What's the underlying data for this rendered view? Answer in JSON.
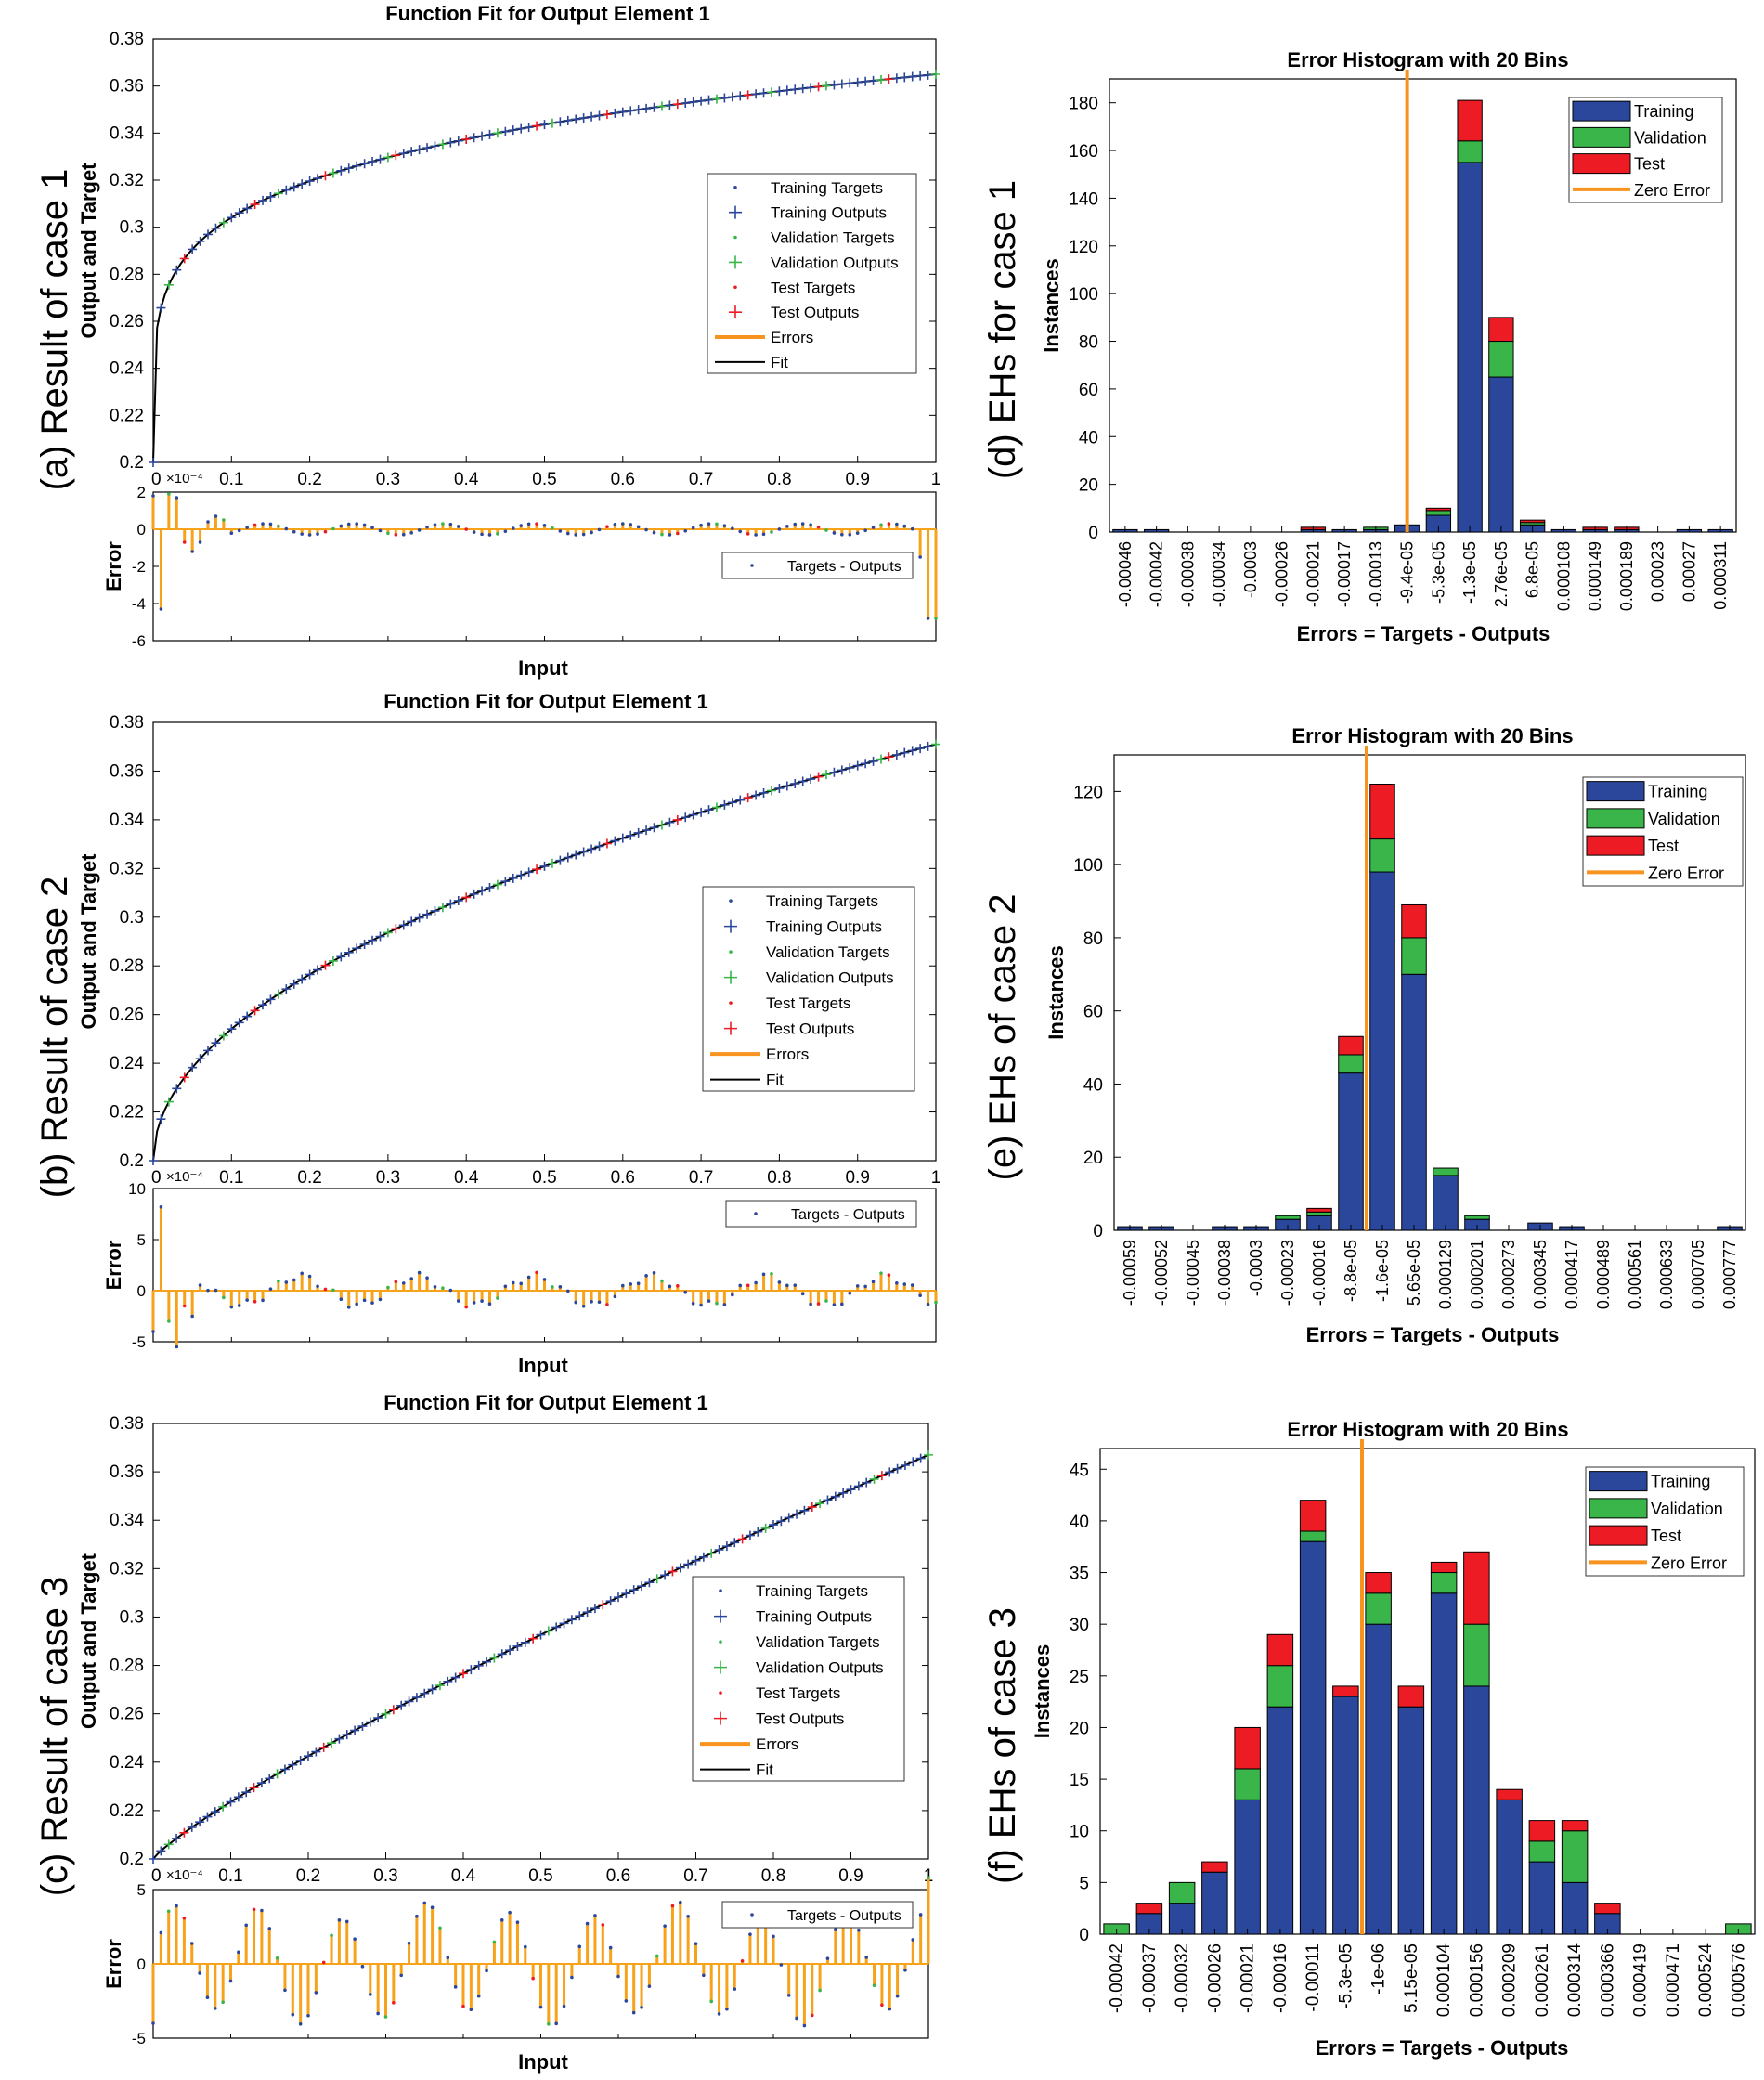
{
  "panel_labels": [
    "(a) Result of case 1",
    "(b) Result of case 2",
    "(c) Result of case 3",
    "(d) EHs for case 1",
    "(e) EHs of case 2",
    "(f) EHs of case 3"
  ],
  "fit_text": {
    "title": "Function Fit for Output Element 1",
    "ylabel": "Output and Target",
    "error_ylabel": "Error",
    "xlabel": "Input",
    "exponent": "×10⁻⁴",
    "legend": [
      "Training Targets",
      "Training Outputs",
      "Validation Targets",
      "Validation Outputs",
      "Test Targets",
      "Test Outputs",
      "Errors",
      "Fit"
    ],
    "error_legend": "Targets - Outputs"
  },
  "hist_text": {
    "title": "Error Histogram with 20 Bins",
    "ylabel": "Instances",
    "xlabel": "Errors = Targets - Outputs",
    "legend": [
      "Training",
      "Validation",
      "Test",
      "Zero Error"
    ]
  },
  "colors": {
    "training": "#2b479c",
    "validation": "#39b54a",
    "test": "#ed1c24",
    "zero": "#f7931e",
    "fit": "#000000",
    "error_bar": "#f7a21b"
  },
  "chart_data": [
    {
      "type": "line",
      "panel": "a",
      "title": "Function Fit for Output Element 1",
      "xlabel": "Input",
      "ylabel": "Output and Target",
      "xlim": [
        0,
        1
      ],
      "ylim": [
        0.2,
        0.38
      ],
      "model": "power",
      "exponent": 0.2,
      "x": [
        0,
        0.01,
        0.02,
        0.04,
        0.06,
        0.1,
        0.15,
        0.2,
        0.3,
        0.4,
        0.5,
        0.6,
        0.7,
        0.8,
        0.9,
        1.0
      ],
      "y": [
        0.2,
        0.248,
        0.26,
        0.268,
        0.276,
        0.292,
        0.303,
        0.311,
        0.323,
        0.332,
        0.339,
        0.345,
        0.351,
        0.356,
        0.361,
        0.365
      ],
      "error_panel": {
        "ylabel": "Error",
        "xlabel": "Input",
        "ylim": [
          -6,
          2
        ],
        "yticks": [
          -6,
          -4,
          -2,
          0,
          2
        ],
        "scale": "×10⁻⁴",
        "shape": "case1"
      }
    },
    {
      "type": "line",
      "panel": "b",
      "title": "Function Fit for Output Element 1",
      "xlabel": "Input",
      "ylabel": "Output and Target",
      "xlim": [
        0,
        1
      ],
      "ylim": [
        0.2,
        0.38
      ],
      "model": "power",
      "exponent": 0.5,
      "x": [
        0,
        0.02,
        0.05,
        0.1,
        0.2,
        0.3,
        0.4,
        0.5,
        0.6,
        0.7,
        0.8,
        0.9,
        1.0
      ],
      "y": [
        0.2,
        0.212,
        0.225,
        0.254,
        0.272,
        0.29,
        0.305,
        0.321,
        0.333,
        0.344,
        0.352,
        0.362,
        0.371
      ],
      "error_panel": {
        "ylabel": "Error",
        "xlabel": "Input",
        "ylim": [
          -5,
          10
        ],
        "yticks": [
          -5,
          0,
          5,
          10
        ],
        "scale": "×10⁻⁴",
        "shape": "case2"
      }
    },
    {
      "type": "line",
      "panel": "c",
      "title": "Function Fit for Output Element 1",
      "xlabel": "Input",
      "ylabel": "Output and Target",
      "xlim": [
        0,
        1
      ],
      "ylim": [
        0.2,
        0.38
      ],
      "model": "power",
      "exponent": 0.85,
      "x": [
        0,
        0.1,
        0.2,
        0.3,
        0.4,
        0.5,
        0.6,
        0.7,
        0.8,
        0.9,
        1.0
      ],
      "y": [
        0.2,
        0.225,
        0.243,
        0.262,
        0.28,
        0.297,
        0.313,
        0.328,
        0.343,
        0.355,
        0.367
      ],
      "error_panel": {
        "ylabel": "Error",
        "xlabel": "Input",
        "ylim": [
          -5,
          5
        ],
        "yticks": [
          -5,
          0,
          5
        ],
        "scale": "×10⁻⁴",
        "shape": "case3"
      }
    },
    {
      "type": "bar",
      "stacked": true,
      "panel": "d",
      "title": "Error Histogram with 20 Bins",
      "xlabel": "Errors = Targets - Outputs",
      "ylabel": "Instances",
      "ylim": [
        0,
        190
      ],
      "yticks": [
        0,
        20,
        40,
        60,
        80,
        100,
        120,
        140,
        160,
        180
      ],
      "zero_error_bin": 9.5,
      "categories": [
        "-0.00046",
        "-0.00042",
        "-0.00038",
        "-0.00034",
        "-0.0003",
        "-0.00026",
        "-0.00021",
        "-0.00017",
        "-0.00013",
        "-9.4e-05",
        "-5.3e-05",
        "-1.3e-05",
        "2.76e-05",
        "6.8e-05",
        "0.000108",
        "0.000149",
        "0.000189",
        "0.00023",
        "0.00027",
        "0.000311"
      ],
      "series": [
        {
          "name": "Training",
          "values": [
            1,
            1,
            0,
            0,
            0,
            0,
            1,
            1,
            1,
            3,
            7,
            155,
            65,
            3,
            1,
            1,
            1,
            0,
            1,
            1
          ]
        },
        {
          "name": "Validation",
          "values": [
            0,
            0,
            0,
            0,
            0,
            0,
            0,
            0,
            1,
            0,
            2,
            9,
            15,
            1,
            0,
            0,
            0,
            0,
            0,
            0
          ]
        },
        {
          "name": "Test",
          "values": [
            0,
            0,
            0,
            0,
            0,
            0,
            1,
            0,
            0,
            0,
            1,
            17,
            10,
            1,
            0,
            1,
            1,
            0,
            0,
            0
          ]
        }
      ]
    },
    {
      "type": "bar",
      "stacked": true,
      "panel": "e",
      "title": "Error Histogram with 20 Bins",
      "xlabel": "Errors = Targets - Outputs",
      "ylabel": "Instances",
      "ylim": [
        0,
        130
      ],
      "yticks": [
        0,
        20,
        40,
        60,
        80,
        100,
        120
      ],
      "zero_error_bin": 8.0,
      "categories": [
        "-0.00059",
        "-0.00052",
        "-0.00045",
        "-0.00038",
        "-0.0003",
        "-0.00023",
        "-0.00016",
        "-8.8e-05",
        "-1.6e-05",
        "5.65e-05",
        "0.000129",
        "0.000201",
        "0.000273",
        "0.000345",
        "0.000417",
        "0.000489",
        "0.000561",
        "0.000633",
        "0.000705",
        "0.000777"
      ],
      "series": [
        {
          "name": "Training",
          "values": [
            1,
            1,
            0,
            1,
            1,
            3,
            4,
            43,
            98,
            70,
            15,
            3,
            0,
            2,
            1,
            0,
            0,
            0,
            0,
            1
          ]
        },
        {
          "name": "Validation",
          "values": [
            0,
            0,
            0,
            0,
            0,
            1,
            1,
            5,
            9,
            10,
            2,
            1,
            0,
            0,
            0,
            0,
            0,
            0,
            0,
            0
          ]
        },
        {
          "name": "Test",
          "values": [
            0,
            0,
            0,
            0,
            0,
            0,
            1,
            5,
            15,
            9,
            0,
            0,
            0,
            0,
            0,
            0,
            0,
            0,
            0,
            0
          ]
        }
      ]
    },
    {
      "type": "bar",
      "stacked": true,
      "panel": "f",
      "title": "Error Histogram with 20 Bins",
      "xlabel": "Errors = Targets - Outputs",
      "ylabel": "Instances",
      "ylim": [
        0,
        47
      ],
      "yticks": [
        0,
        5,
        10,
        15,
        20,
        25,
        30,
        35,
        40,
        45
      ],
      "zero_error_bin": 8.0,
      "categories": [
        "-0.00042",
        "-0.00037",
        "-0.00032",
        "-0.00026",
        "-0.00021",
        "-0.00016",
        "-0.00011",
        "-5.3e-05",
        "-1e-06",
        "5.15e-05",
        "0.000104",
        "0.000156",
        "0.000209",
        "0.000261",
        "0.000314",
        "0.000366",
        "0.000419",
        "0.000471",
        "0.000524",
        "0.000576"
      ],
      "series": [
        {
          "name": "Training",
          "values": [
            0,
            2,
            3,
            6,
            13,
            22,
            38,
            23,
            30,
            22,
            33,
            24,
            13,
            7,
            5,
            2,
            0,
            0,
            0,
            0
          ]
        },
        {
          "name": "Validation",
          "values": [
            1,
            0,
            2,
            0,
            3,
            4,
            1,
            0,
            3,
            0,
            2,
            6,
            0,
            2,
            5,
            0,
            0,
            0,
            0,
            1
          ]
        },
        {
          "name": "Test",
          "values": [
            0,
            1,
            0,
            1,
            4,
            3,
            3,
            1,
            2,
            2,
            1,
            7,
            1,
            2,
            1,
            1,
            0,
            0,
            0,
            0
          ]
        }
      ]
    }
  ]
}
